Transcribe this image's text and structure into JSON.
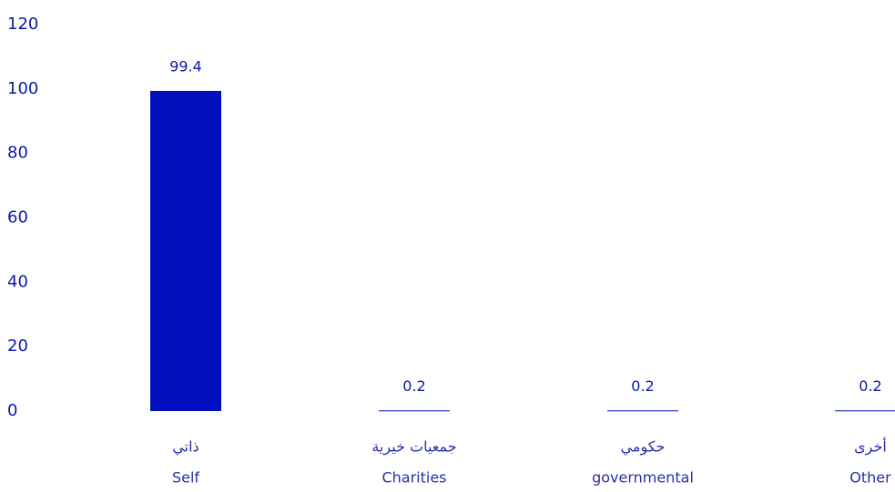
{
  "colors": {
    "bar": "#0010BE",
    "text": "#0A1AA8",
    "category_text": "#2A2FA8"
  },
  "chart_data": {
    "type": "bar",
    "title": "",
    "xlabel": "",
    "ylabel": "",
    "ylim": [
      0,
      120
    ],
    "yticks": [
      0,
      20,
      40,
      60,
      80,
      100,
      120
    ],
    "grid": false,
    "categories_ar": [
      "ذاتي",
      "جمعيات خيرية",
      "حكومي",
      "أخرى"
    ],
    "categories": [
      "Self",
      "Charities",
      "governmental",
      "Other"
    ],
    "values": [
      99.4,
      0.2,
      0.2,
      0.2
    ],
    "data_labels": [
      "99.4",
      "0.2",
      "0.2",
      "0.2"
    ]
  }
}
